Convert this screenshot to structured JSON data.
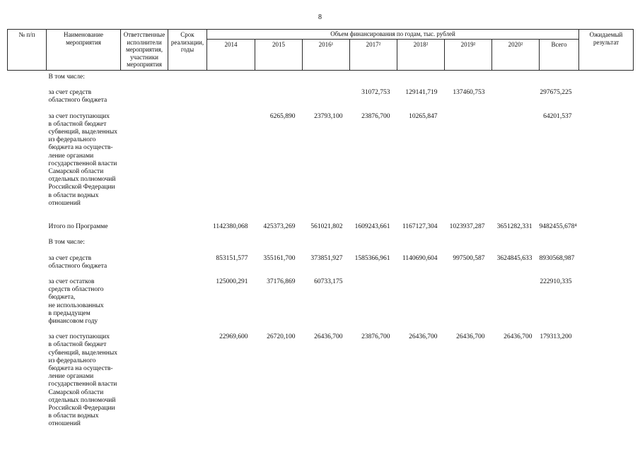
{
  "page": {
    "number": "8"
  },
  "table": {
    "header": {
      "num": "№ п/п",
      "activity": "Наименование\nмероприятия",
      "responsible": "Ответственные\nисполнители\nмероприятия,\nучастники\nмероприятия",
      "term": "Срок\nреализации,\nгоды",
      "financing_title": "Объем финансирования по годам, тыс. рублей",
      "expected": "Ожидаемый\nрезультат",
      "year_columns": [
        "2014",
        "2015",
        "2016¹",
        "2017²",
        "2018²",
        "2019²",
        "2020²",
        "Всего"
      ]
    },
    "rows": [
      {
        "name": "В том числе:",
        "values": [
          "",
          "",
          "",
          "",
          "",
          "",
          "",
          ""
        ]
      },
      {
        "name": "за счет средств\nобластного бюджета",
        "values": [
          "",
          "",
          "",
          "31072,753",
          "129141,719",
          "137460,753",
          "",
          "297675,225"
        ]
      },
      {
        "name": "за счет поступающих\nв областной бюджет\nсубвенций, выделенных\nиз федерального\nбюджета  на осуществ-\nление органами\nгосударственной власти\nСамарской области\nотдельных полномочий\nРоссийской Федерации\nв области водных\nотношений",
        "values": [
          "",
          "6265,890",
          "23793,100",
          "23876,700",
          "10265,847",
          "",
          "",
          "64201,537"
        ]
      },
      {
        "name": "Итого по Программе",
        "values": [
          "1142380,068",
          "425373,269",
          "561021,802",
          "1609243,661",
          "1167127,304",
          "1023937,287",
          "3651282,331",
          "9482455,678⁴"
        ]
      },
      {
        "name": "В том числе:",
        "values": [
          "",
          "",
          "",
          "",
          "",
          "",
          "",
          ""
        ]
      },
      {
        "name": "за счет средств\nобластного бюджета",
        "values": [
          "853151,577",
          "355161,700",
          "373851,927",
          "1585366,961",
          "1140690,604",
          "997500,587",
          "3624845,633",
          "8930568,987"
        ]
      },
      {
        "name": "за счет остатков\nсредств областного\nбюджета,\nне использованных\nв предыдущем\nфинансовом году",
        "values": [
          "125000,291",
          "37176,869",
          "60733,175",
          "",
          "",
          "",
          "",
          "222910,335"
        ]
      },
      {
        "name": "за счет поступающих\nв областной бюджет\nсубвенций, выделенных\nиз федерального\nбюджета на осуществ-\nление органами\nгосударственной власти\nСамарской области\nотдельных полномочий\nРоссийской Федерации\nв области водных\nотношений",
        "values": [
          "22969,600",
          "26720,100",
          "26436,700",
          "23876,700",
          "26436,700",
          "26436,700",
          "26436,700",
          "179313,200"
        ]
      }
    ]
  }
}
